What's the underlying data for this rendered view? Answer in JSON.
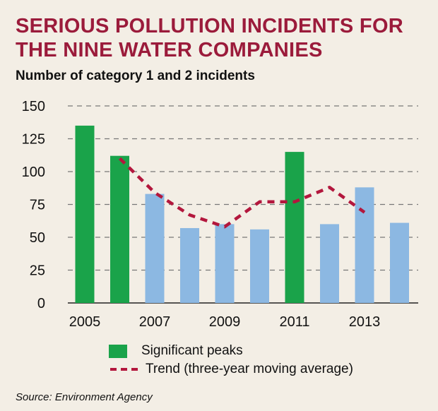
{
  "title_line1": "SERIOUS POLLUTION INCIDENTS FOR",
  "title_line2": "THE NINE WATER COMPANIES",
  "subtitle": "Number of category 1 and 2 incidents",
  "legend": {
    "peaks": "Significant peaks",
    "trend": "Trend (three-year moving average)"
  },
  "source": "Source: Environment Agency",
  "colors": {
    "title": "#9b1b3b",
    "peak_bar": "#1aa34a",
    "normal_bar": "#8cb8e2",
    "trend_line": "#b3173d",
    "background": "#f3eee5",
    "grid": "#777777"
  },
  "chart_data": {
    "type": "bar",
    "categories": [
      "2005",
      "2006",
      "2007",
      "2008",
      "2009",
      "2010",
      "2011",
      "2012",
      "2013",
      "2014"
    ],
    "x_tick_labels": [
      "2005",
      "",
      "2007",
      "",
      "2009",
      "",
      "2011",
      "",
      "2013",
      ""
    ],
    "values": [
      135,
      112,
      83,
      57,
      60,
      56,
      115,
      60,
      88,
      61
    ],
    "significant_peak": [
      true,
      true,
      false,
      false,
      false,
      false,
      true,
      false,
      false,
      false
    ],
    "trend": {
      "name": "Trend (three-year moving average)",
      "x": [
        "2006",
        "2007",
        "2008",
        "2009",
        "2010",
        "2011",
        "2012",
        "2013"
      ],
      "values": [
        110,
        84,
        67,
        58,
        77,
        77,
        88,
        69
      ]
    },
    "y_ticks": [
      0,
      25,
      50,
      75,
      100,
      125,
      150
    ],
    "ylim": [
      0,
      150
    ],
    "grid": "horizontal dashed",
    "legend_position": "bottom"
  }
}
